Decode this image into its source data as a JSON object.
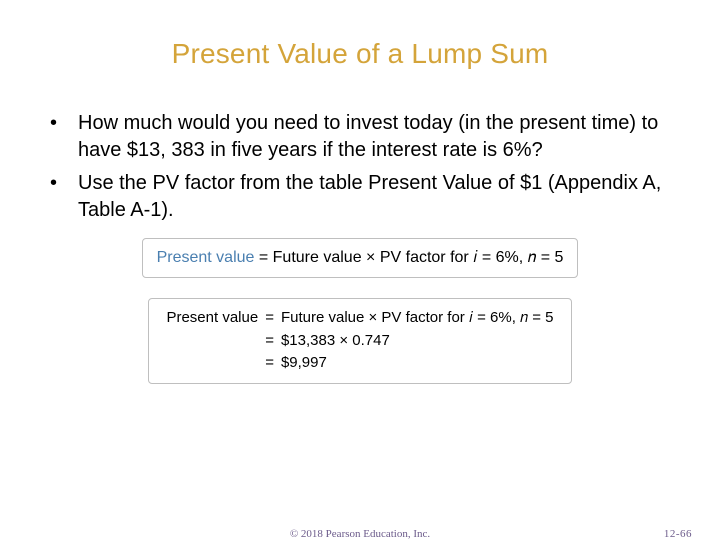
{
  "colors": {
    "title": "#d4a43a",
    "bullet_text": "#000000",
    "formula_border": "#bfbfbf",
    "formula_label": "#4a7fb0",
    "footer_copyright": "#6b5a8a",
    "footer_pagenum": "#6b5a8a"
  },
  "title": "Present Value of a Lump Sum",
  "bullets": [
    "How much would you need to invest today (in the present time) to have $13, 383 in five years if the interest rate is 6%?",
    "Use the PV factor from the table Present Value of $1 (Appendix A, Table A-1)."
  ],
  "formula1": {
    "lhs_label": "Present value",
    "rhs_text": " = Future value × PV factor for 𝑖 = 6%, 𝑛 = 5"
  },
  "formula2": {
    "line1_lhs": "Present value",
    "line1_rhs": "Future value × PV factor for 𝑖 = 6%, 𝑛 = 5",
    "line2_rhs": "$13,383 × 0.747",
    "line3_rhs": "$9,997",
    "eq": "="
  },
  "footer": {
    "copyright": "© 2018 Pearson Education, Inc.",
    "pagenum": "12-66"
  }
}
